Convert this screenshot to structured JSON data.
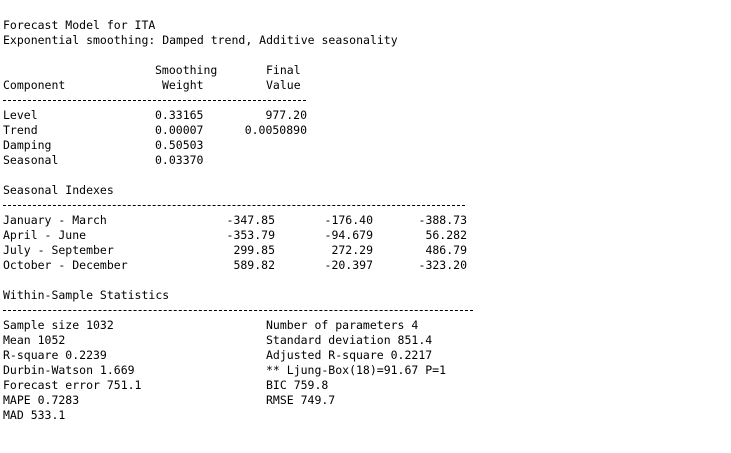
{
  "header": {
    "title": "Forecast Model for ITA",
    "subtitle": "Exponential smoothing: Damped trend, Additive seasonality"
  },
  "components": {
    "col_component": "Component",
    "col_weight_line1": "Smoothing",
    "col_weight_line2": "Weight",
    "col_value_line1": "Final",
    "col_value_line2": "Value",
    "rows": [
      {
        "name": "Level",
        "weight": "0.33165",
        "value": "977.20"
      },
      {
        "name": "Trend",
        "weight": "0.00007",
        "value": "0.0050890"
      },
      {
        "name": "Damping",
        "weight": "0.50503",
        "value": ""
      },
      {
        "name": "Seasonal",
        "weight": "0.03370",
        "value": ""
      }
    ]
  },
  "seasonal": {
    "title": "Seasonal Indexes",
    "rows": [
      {
        "period": "January - March",
        "v1": "-347.85",
        "v2": "-176.40",
        "v3": "-388.73"
      },
      {
        "period": "April - June",
        "v1": "-353.79",
        "v2": "-94.679",
        "v3": "56.282"
      },
      {
        "period": "July - September",
        "v1": "299.85",
        "v2": "272.29",
        "v3": "486.79"
      },
      {
        "period": "October - December",
        "v1": "589.82",
        "v2": "-20.397",
        "v3": "-323.20"
      }
    ]
  },
  "stats": {
    "title": "Within-Sample Statistics",
    "left": [
      "Sample size 1032",
      "Mean 1052",
      "R-square 0.2239",
      "Durbin-Watson 1.669",
      "Forecast error 751.1",
      "MAPE 0.7283",
      "MAD 533.1"
    ],
    "right": [
      "Number of parameters 4",
      "Standard deviation 851.4",
      "Adjusted R-square 0.2217",
      "** Ljung-Box(18)=91.67 P=1",
      "BIC 759.8",
      "RMSE 749.7"
    ]
  }
}
